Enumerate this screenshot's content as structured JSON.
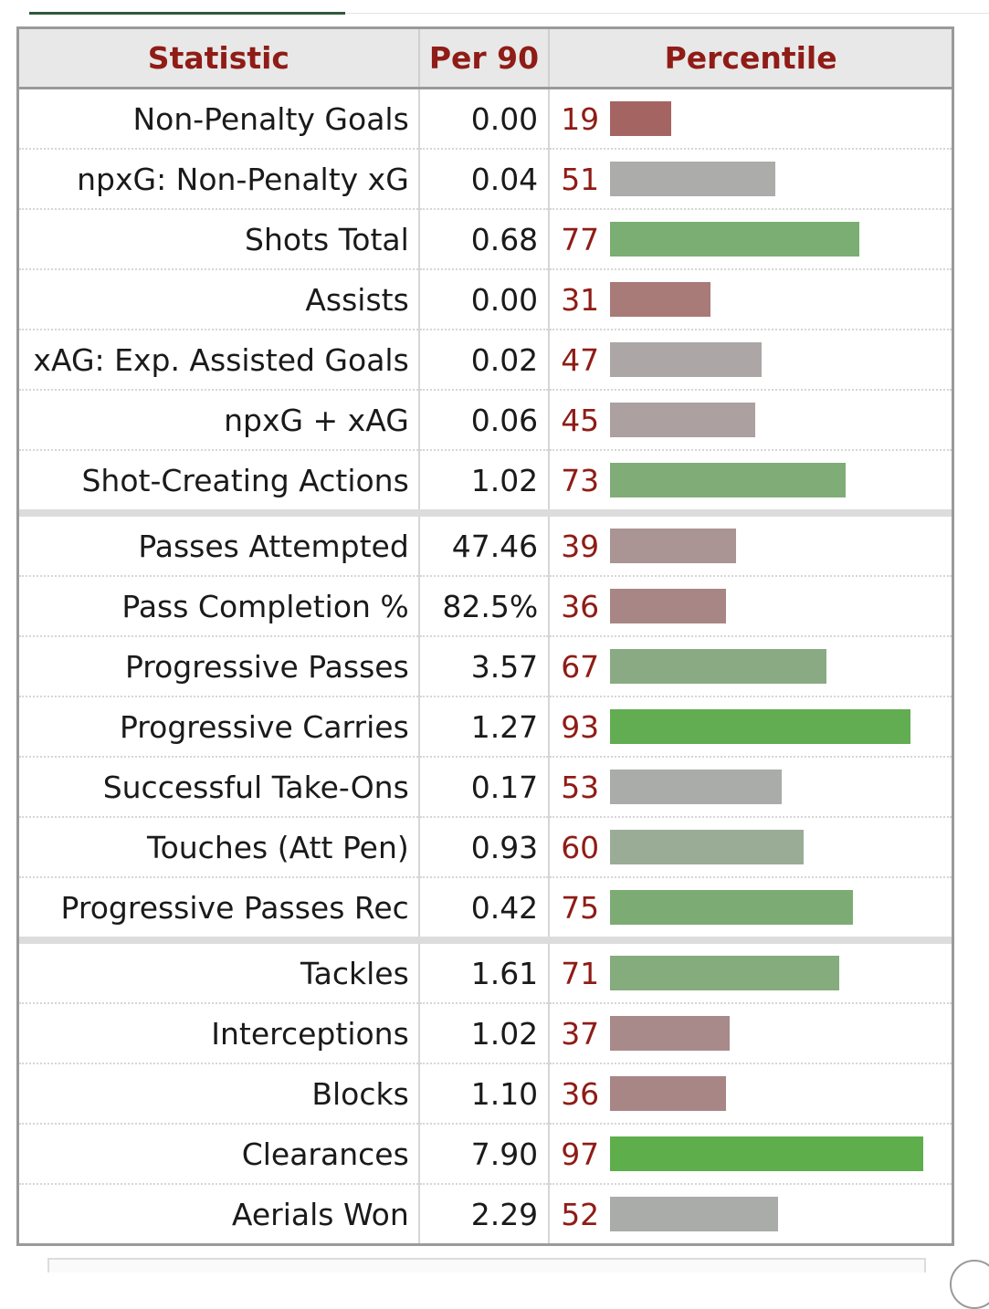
{
  "table": {
    "headers": {
      "statistic": "Statistic",
      "per90": "Per 90",
      "percentile": "Percentile"
    },
    "groups": [
      [
        {
          "stat": "Non-Penalty Goals",
          "per90": "0.00",
          "percentile": 19,
          "color": "#a46462"
        },
        {
          "stat": "npxG: Non-Penalty xG",
          "per90": "0.04",
          "percentile": 51,
          "color": "#acacaa"
        },
        {
          "stat": "Shots Total",
          "per90": "0.68",
          "percentile": 77,
          "color": "#7aae72"
        },
        {
          "stat": "Assists",
          "per90": "0.00",
          "percentile": 31,
          "color": "#a87a78"
        },
        {
          "stat": "xAG: Exp. Assisted Goals",
          "per90": "0.02",
          "percentile": 47,
          "color": "#aca6a6"
        },
        {
          "stat": "npxG + xAG",
          "per90": "0.06",
          "percentile": 45,
          "color": "#aca0a0"
        },
        {
          "stat": "Shot-Creating Actions",
          "per90": "1.02",
          "percentile": 73,
          "color": "#80ac78"
        }
      ],
      [
        {
          "stat": "Passes Attempted",
          "per90": "47.46",
          "percentile": 39,
          "color": "#aa9494"
        },
        {
          "stat": "Pass Completion %",
          "per90": "82.5%",
          "percentile": 36,
          "color": "#a88686"
        },
        {
          "stat": "Progressive Passes",
          "per90": "3.57",
          "percentile": 67,
          "color": "#8aaa84"
        },
        {
          "stat": "Progressive Carries",
          "per90": "1.27",
          "percentile": 93,
          "color": "#62ac52"
        },
        {
          "stat": "Successful Take-Ons",
          "per90": "0.17",
          "percentile": 53,
          "color": "#a9aca8"
        },
        {
          "stat": "Touches (Att Pen)",
          "per90": "0.93",
          "percentile": 60,
          "color": "#9aac96"
        },
        {
          "stat": "Progressive Passes Rec",
          "per90": "0.42",
          "percentile": 75,
          "color": "#7cac74"
        }
      ],
      [
        {
          "stat": "Tackles",
          "per90": "1.61",
          "percentile": 71,
          "color": "#84ac7c"
        },
        {
          "stat": "Interceptions",
          "per90": "1.02",
          "percentile": 37,
          "color": "#a88a8a"
        },
        {
          "stat": "Blocks",
          "per90": "1.10",
          "percentile": 36,
          "color": "#a88686"
        },
        {
          "stat": "Clearances",
          "per90": "7.90",
          "percentile": 97,
          "color": "#5eae4c"
        },
        {
          "stat": "Aerials Won",
          "per90": "2.29",
          "percentile": 52,
          "color": "#a9aca8"
        }
      ]
    ]
  }
}
